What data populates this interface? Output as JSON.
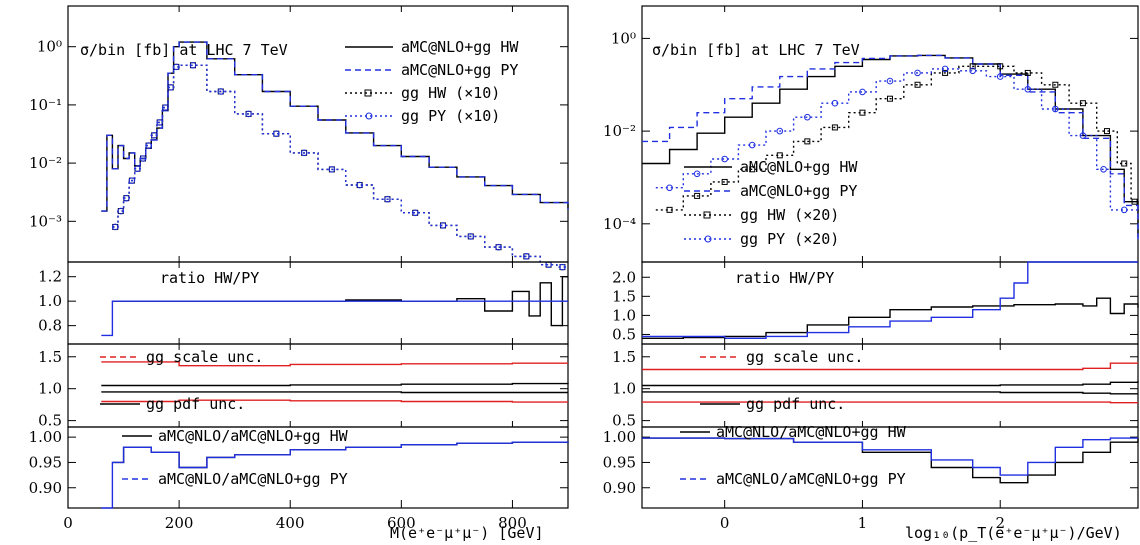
{
  "colors": {
    "black": "#000000",
    "blue": "#2030e0",
    "red": "#e02020"
  },
  "chart_data": [
    {
      "type": "line",
      "panel": "left-main",
      "title": "σ/bin [fb]  at LHC 7 TeV",
      "xlim": [
        0,
        900
      ],
      "ylim": [
        0.0002,
        5
      ],
      "log_y": true,
      "y_ticks": [
        0.001,
        0.01,
        0.1,
        1
      ],
      "y_tick_labels": [
        "10⁻³",
        "10⁻²",
        "10⁻¹",
        "10⁰"
      ],
      "x_ticks": [
        0,
        200,
        400,
        600,
        800
      ],
      "x_tick_labels": [
        "0",
        "200",
        "400",
        "600",
        "800"
      ],
      "xlabel": "M(e⁺e⁻μ⁺μ⁻) [GeV]",
      "legend_position": "top-right",
      "series": [
        {
          "name": "aMC@NLO+gg HW",
          "style": "solid",
          "color": "#000000",
          "x": [
            60,
            70,
            80,
            90,
            100,
            110,
            120,
            130,
            140,
            150,
            160,
            170,
            180,
            190,
            200,
            250,
            300,
            350,
            400,
            450,
            500,
            550,
            600,
            650,
            700,
            750,
            800,
            850,
            900
          ],
          "y": [
            0.0015,
            0.03,
            0.008,
            0.02,
            0.012,
            0.015,
            0.009,
            0.012,
            0.018,
            0.025,
            0.04,
            0.08,
            0.35,
            1.0,
            1.2,
            0.62,
            0.33,
            0.17,
            0.095,
            0.055,
            0.033,
            0.02,
            0.013,
            0.0085,
            0.0058,
            0.0041,
            0.0029,
            0.0021,
            0.0016
          ]
        },
        {
          "name": "aMC@NLO+gg PY",
          "style": "dashed",
          "color": "#2030e0",
          "x": [
            60,
            70,
            80,
            90,
            100,
            110,
            120,
            130,
            140,
            150,
            160,
            170,
            180,
            190,
            200,
            250,
            300,
            350,
            400,
            450,
            500,
            550,
            600,
            650,
            700,
            750,
            800,
            850,
            900
          ],
          "y": [
            0.0015,
            0.03,
            0.008,
            0.02,
            0.012,
            0.015,
            0.009,
            0.012,
            0.018,
            0.025,
            0.04,
            0.08,
            0.35,
            1.0,
            1.2,
            0.62,
            0.33,
            0.17,
            0.095,
            0.055,
            0.033,
            0.02,
            0.013,
            0.0085,
            0.0058,
            0.0041,
            0.0029,
            0.0021,
            0.0016
          ]
        },
        {
          "name": "gg HW (×10)",
          "style": "dotted-square",
          "color": "#000000",
          "x": [
            80,
            90,
            100,
            110,
            120,
            130,
            140,
            150,
            160,
            170,
            180,
            190,
            200,
            250,
            300,
            350,
            400,
            450,
            500,
            550,
            600,
            650,
            700,
            750,
            800,
            850,
            880
          ],
          "y": [
            0.0008,
            0.0015,
            0.0025,
            0.005,
            0.008,
            0.012,
            0.02,
            0.03,
            0.05,
            0.09,
            0.2,
            0.45,
            0.48,
            0.17,
            0.07,
            0.032,
            0.015,
            0.0078,
            0.0042,
            0.0024,
            0.0014,
            0.00085,
            0.00055,
            0.00036,
            0.00025,
            0.00018,
            0.00014
          ]
        },
        {
          "name": "gg PY (×10)",
          "style": "dotted-circle",
          "color": "#2030e0",
          "x": [
            80,
            90,
            100,
            110,
            120,
            130,
            140,
            150,
            160,
            170,
            180,
            190,
            200,
            250,
            300,
            350,
            400,
            450,
            500,
            550,
            600,
            650,
            700,
            750,
            800,
            850,
            880
          ],
          "y": [
            0.0008,
            0.0015,
            0.0025,
            0.005,
            0.008,
            0.012,
            0.02,
            0.03,
            0.05,
            0.09,
            0.2,
            0.45,
            0.48,
            0.17,
            0.07,
            0.032,
            0.015,
            0.0078,
            0.0042,
            0.0024,
            0.0014,
            0.00085,
            0.00055,
            0.00036,
            0.00025,
            0.00018,
            0.00014
          ]
        }
      ]
    },
    {
      "type": "line",
      "panel": "left-ratio",
      "annotation": "ratio HW/PY",
      "ylim": [
        0.65,
        1.32
      ],
      "y_ticks": [
        0.8,
        1.0,
        1.2
      ],
      "y_tick_labels": [
        "0.8",
        "1.0",
        "1.2"
      ],
      "series": [
        {
          "name": "aMC@NLO+gg",
          "color": "#000000",
          "x": [
            80,
            100,
            150,
            200,
            300,
            400,
            500,
            600,
            700,
            750,
            800,
            830,
            850,
            870,
            890
          ],
          "y": [
            1.0,
            1.0,
            1.0,
            1.0,
            1.0,
            1.0,
            1.01,
            1.0,
            1.02,
            0.92,
            1.08,
            0.88,
            1.15,
            0.8,
            1.2
          ]
        },
        {
          "name": "gg",
          "color": "#2030e0",
          "x": [
            60,
            80,
            100,
            150,
            200,
            300,
            400,
            500,
            600,
            700,
            800,
            850,
            900
          ],
          "y": [
            0.72,
            1.0,
            1.0,
            1.0,
            1.0,
            1.0,
            1.0,
            1.0,
            1.0,
            1.0,
            1.0,
            1.0,
            1.0
          ]
        }
      ]
    },
    {
      "type": "line",
      "panel": "left-uncertainty",
      "annotations": [
        "gg scale unc.",
        "gg pdf unc."
      ],
      "ylim": [
        0.4,
        1.7
      ],
      "y_ticks": [
        0.5,
        1.0,
        1.5
      ],
      "y_tick_labels": [
        "0.5",
        "1.0",
        "1.5"
      ],
      "series": [
        {
          "name": "gg scale unc. upper",
          "color": "#e02020",
          "x": [
            60,
            200,
            400,
            600,
            800,
            900
          ],
          "y": [
            1.42,
            1.36,
            1.38,
            1.39,
            1.4,
            1.4
          ]
        },
        {
          "name": "gg scale unc. lower",
          "color": "#e02020",
          "x": [
            60,
            200,
            400,
            600,
            800,
            900
          ],
          "y": [
            0.8,
            0.82,
            0.81,
            0.8,
            0.79,
            0.79
          ]
        },
        {
          "name": "gg pdf unc. upper",
          "color": "#000000",
          "x": [
            60,
            200,
            400,
            600,
            800,
            900
          ],
          "y": [
            1.05,
            1.05,
            1.06,
            1.07,
            1.08,
            1.09
          ]
        },
        {
          "name": "gg pdf unc. lower",
          "color": "#000000",
          "x": [
            60,
            200,
            400,
            600,
            800,
            900
          ],
          "y": [
            0.95,
            0.95,
            0.95,
            0.94,
            0.94,
            0.94
          ]
        }
      ]
    },
    {
      "type": "line",
      "panel": "left-fraction",
      "annotations": [
        "aMC@NLO/aMC@NLO+gg HW",
        "aMC@NLO/aMC@NLO+gg PY"
      ],
      "ylim": [
        0.86,
        1.02
      ],
      "y_ticks": [
        0.9,
        0.95,
        1.0
      ],
      "y_tick_labels": [
        "0.90",
        "0.95",
        "1.00"
      ],
      "series": [
        {
          "name": "HW",
          "color": "#000000",
          "x": [
            80,
            100,
            150,
            200,
            250,
            300,
            400,
            500,
            600,
            700,
            800,
            900
          ],
          "y": [
            0.95,
            0.98,
            0.97,
            0.94,
            0.96,
            0.965,
            0.975,
            0.98,
            0.985,
            0.988,
            0.99,
            0.992
          ]
        },
        {
          "name": "PY",
          "color": "#2030e0",
          "x": [
            60,
            80,
            100,
            150,
            200,
            250,
            300,
            400,
            500,
            600,
            700,
            800,
            900
          ],
          "y": [
            0.86,
            0.95,
            0.98,
            0.97,
            0.94,
            0.96,
            0.965,
            0.975,
            0.98,
            0.985,
            0.988,
            0.99,
            0.992
          ]
        }
      ]
    },
    {
      "type": "line",
      "panel": "right-main",
      "title": "σ/bin [fb]  at LHC 7 TeV",
      "xlim": [
        -0.6,
        3.0
      ],
      "ylim": [
        1.5e-05,
        5
      ],
      "log_y": true,
      "y_ticks": [
        0.0001,
        0.01,
        1
      ],
      "y_tick_labels": [
        "10⁻⁴",
        "10⁻²",
        "10⁰"
      ],
      "x_ticks": [
        0,
        1,
        2
      ],
      "x_tick_labels": [
        "0",
        "1",
        "2"
      ],
      "xlabel": "log₁₀(p_T(e⁺e⁻μ⁺μ⁻)/GeV)",
      "legend_position": "center-left",
      "series": [
        {
          "name": "aMC@NLO+gg HW",
          "style": "solid",
          "color": "#000000",
          "x": [
            -0.6,
            -0.4,
            -0.2,
            0,
            0.2,
            0.4,
            0.6,
            0.8,
            1.0,
            1.2,
            1.4,
            1.6,
            1.8,
            2.0,
            2.2,
            2.4,
            2.6,
            2.8,
            2.9,
            3.0
          ],
          "y": [
            0.002,
            0.004,
            0.009,
            0.02,
            0.04,
            0.08,
            0.15,
            0.25,
            0.35,
            0.42,
            0.43,
            0.38,
            0.28,
            0.17,
            0.08,
            0.03,
            0.008,
            0.0015,
            0.0003,
            5e-05
          ]
        },
        {
          "name": "aMC@NLO+gg PY",
          "style": "dashed",
          "color": "#2030e0",
          "x": [
            -0.6,
            -0.4,
            -0.2,
            0,
            0.2,
            0.4,
            0.6,
            0.8,
            1.0,
            1.2,
            1.4,
            1.6,
            1.8,
            2.0,
            2.2,
            2.4,
            2.6,
            2.8,
            2.9,
            3.0
          ],
          "y": [
            0.006,
            0.012,
            0.025,
            0.05,
            0.09,
            0.15,
            0.22,
            0.3,
            0.37,
            0.42,
            0.43,
            0.38,
            0.28,
            0.16,
            0.07,
            0.025,
            0.007,
            0.0012,
            0.00025,
            4e-05
          ]
        },
        {
          "name": "gg HW (×20)",
          "style": "dotted-square",
          "color": "#000000",
          "x": [
            -0.5,
            -0.3,
            -0.1,
            0.1,
            0.3,
            0.5,
            0.7,
            0.9,
            1.1,
            1.3,
            1.5,
            1.7,
            1.9,
            2.1,
            2.3,
            2.5,
            2.7,
            2.85,
            2.95
          ],
          "y": [
            0.0002,
            0.0004,
            0.0008,
            0.0015,
            0.003,
            0.006,
            0.012,
            0.025,
            0.05,
            0.1,
            0.18,
            0.25,
            0.25,
            0.18,
            0.1,
            0.04,
            0.01,
            0.002,
            0.0003
          ]
        },
        {
          "name": "gg PY (×20)",
          "style": "dotted-circle",
          "color": "#2030e0",
          "x": [
            -0.5,
            -0.3,
            -0.1,
            0.1,
            0.3,
            0.5,
            0.7,
            0.9,
            1.1,
            1.3,
            1.5,
            1.7,
            1.9,
            2.1,
            2.3,
            2.5,
            2.7,
            2.8
          ],
          "y": [
            0.0006,
            0.0012,
            0.0025,
            0.005,
            0.01,
            0.02,
            0.04,
            0.07,
            0.12,
            0.18,
            0.22,
            0.2,
            0.15,
            0.08,
            0.03,
            0.008,
            0.0015,
            0.0002
          ]
        }
      ]
    },
    {
      "type": "line",
      "panel": "right-ratio",
      "annotation": "ratio HW/PY",
      "ylim": [
        0.25,
        2.4
      ],
      "y_ticks": [
        0.5,
        1.0,
        1.5,
        2.0
      ],
      "y_tick_labels": [
        "0.5",
        "1.0",
        "1.5",
        "2.0"
      ],
      "series": [
        {
          "name": "aMC@NLO+gg",
          "color": "#000000",
          "x": [
            -0.6,
            -0.3,
            0,
            0.3,
            0.6,
            0.9,
            1.2,
            1.5,
            1.8,
            2.1,
            2.4,
            2.6,
            2.7,
            2.8,
            2.9,
            3.0
          ],
          "y": [
            0.4,
            0.42,
            0.45,
            0.55,
            0.75,
            0.95,
            1.15,
            1.22,
            1.25,
            1.28,
            1.3,
            1.25,
            1.45,
            1.05,
            1.3,
            1.2
          ]
        },
        {
          "name": "gg",
          "color": "#2030e0",
          "x": [
            -0.6,
            -0.3,
            0,
            0.3,
            0.6,
            0.9,
            1.2,
            1.5,
            1.8,
            2.0,
            2.1,
            2.2
          ],
          "y": [
            0.45,
            0.45,
            0.4,
            0.45,
            0.55,
            0.7,
            0.85,
            0.95,
            1.15,
            1.45,
            1.85,
            2.4
          ]
        }
      ]
    },
    {
      "type": "line",
      "panel": "right-uncertainty",
      "annotations": [
        "gg scale unc.",
        "gg pdf unc."
      ],
      "ylim": [
        0.4,
        1.7
      ],
      "y_ticks": [
        0.5,
        1.0,
        1.5
      ],
      "y_tick_labels": [
        "0.5",
        "1.0",
        "1.5"
      ],
      "series": [
        {
          "name": "gg scale unc. upper",
          "color": "#e02020",
          "x": [
            -0.6,
            0,
            1,
            2,
            2.6,
            2.8,
            3.0
          ],
          "y": [
            1.3,
            1.3,
            1.3,
            1.3,
            1.32,
            1.4,
            1.4
          ]
        },
        {
          "name": "gg scale unc. lower",
          "color": "#e02020",
          "x": [
            -0.6,
            0,
            1,
            2,
            2.6,
            2.8,
            3.0
          ],
          "y": [
            0.79,
            0.79,
            0.79,
            0.79,
            0.79,
            0.78,
            0.78
          ]
        },
        {
          "name": "gg pdf unc. upper",
          "color": "#000000",
          "x": [
            -0.6,
            0,
            1,
            2,
            2.6,
            2.8,
            3.0
          ],
          "y": [
            1.05,
            1.05,
            1.05,
            1.06,
            1.07,
            1.1,
            1.12
          ]
        },
        {
          "name": "gg pdf unc. lower",
          "color": "#000000",
          "x": [
            -0.6,
            0,
            1,
            2,
            2.6,
            2.8,
            3.0
          ],
          "y": [
            0.95,
            0.95,
            0.95,
            0.94,
            0.93,
            0.92,
            0.92
          ]
        }
      ]
    },
    {
      "type": "line",
      "panel": "right-fraction",
      "annotations": [
        "aMC@NLO/aMC@NLO+gg HW",
        "aMC@NLO/aMC@NLO+gg PY"
      ],
      "ylim": [
        0.86,
        1.02
      ],
      "y_ticks": [
        0.9,
        0.95,
        1.0
      ],
      "y_tick_labels": [
        "0.90",
        "0.95",
        "1.00"
      ],
      "series": [
        {
          "name": "HW",
          "color": "#000000",
          "x": [
            -0.6,
            0,
            0.5,
            1.0,
            1.5,
            1.8,
            2.0,
            2.2,
            2.4,
            2.6,
            2.8,
            3.0
          ],
          "y": [
            0.998,
            0.997,
            0.99,
            0.97,
            0.94,
            0.92,
            0.91,
            0.925,
            0.95,
            0.97,
            0.99,
            0.998
          ]
        },
        {
          "name": "PY",
          "color": "#2030e0",
          "x": [
            -0.6,
            0,
            0.5,
            1.0,
            1.5,
            1.8,
            2.0,
            2.2,
            2.4,
            2.6,
            2.8,
            3.0
          ],
          "y": [
            0.998,
            0.997,
            0.99,
            0.975,
            0.955,
            0.94,
            0.925,
            0.95,
            0.98,
            0.995,
            0.998,
            0.998
          ]
        }
      ]
    }
  ]
}
